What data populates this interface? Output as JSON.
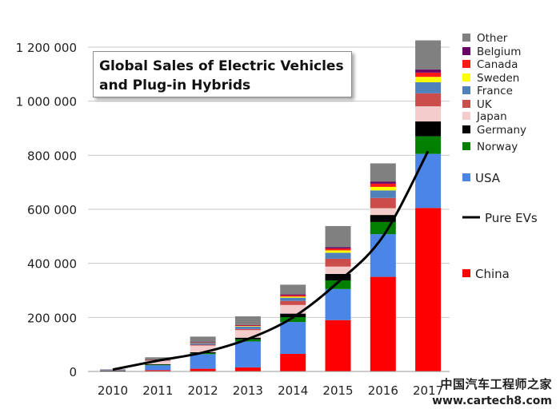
{
  "chart_data": {
    "type": "bar",
    "stacked": true,
    "title_lines": [
      "Global Sales of Electric Vehicles",
      "and Plug-in Hybrids"
    ],
    "categories": [
      "2010",
      "2011",
      "2012",
      "2013",
      "2014",
      "2015",
      "2016",
      "2017"
    ],
    "y_ticks": [
      0,
      200000,
      400000,
      600000,
      800000,
      1000000,
      1200000
    ],
    "y_tick_labels": [
      "0",
      "200 000",
      "400 000",
      "600 000",
      "800 000",
      "1 000 000",
      "1 200 000"
    ],
    "ylim": [
      0,
      1250000
    ],
    "grid": true,
    "legend_position": "right",
    "series": [
      {
        "name": "China",
        "color": "#ff0000",
        "values": [
          1000,
          5000,
          10000,
          15000,
          65000,
          190000,
          350000,
          605000
        ]
      },
      {
        "name": "USA",
        "color": "#4a86e8",
        "values": [
          1000,
          18000,
          54000,
          96000,
          118000,
          115000,
          158000,
          200000
        ]
      },
      {
        "name": "Norway",
        "color": "#007f00",
        "values": [
          500,
          2000,
          4000,
          8000,
          18000,
          32000,
          45000,
          65000
        ]
      },
      {
        "name": "Germany",
        "color": "#000000",
        "values": [
          500,
          2000,
          3000,
          6000,
          13000,
          24000,
          26000,
          55000
        ]
      },
      {
        "name": "Japan",
        "color": "#f4cccc",
        "values": [
          2000,
          12000,
          25000,
          28000,
          32000,
          27000,
          25000,
          56000
        ]
      },
      {
        "name": "UK",
        "color": "#cc4c4c",
        "values": [
          500,
          1500,
          3000,
          4000,
          15000,
          29000,
          38000,
          48000
        ]
      },
      {
        "name": "France",
        "color": "#4f81bd",
        "values": [
          500,
          2500,
          6000,
          9000,
          12000,
          22000,
          28000,
          41000
        ]
      },
      {
        "name": "Sweden",
        "color": "#ffff00",
        "values": [
          0,
          500,
          1000,
          2000,
          4000,
          9000,
          13000,
          20000
        ]
      },
      {
        "name": "Canada",
        "color": "#ff1a1a",
        "values": [
          0,
          500,
          1000,
          2000,
          5000,
          7000,
          12000,
          16000
        ]
      },
      {
        "name": "Belgium",
        "color": "#660066",
        "values": [
          0,
          500,
          1000,
          2000,
          3000,
          5000,
          7000,
          11000
        ]
      },
      {
        "name": "Other",
        "color": "#808080",
        "values": [
          2000,
          8000,
          21000,
          32000,
          36000,
          78000,
          68000,
          108000
        ]
      }
    ],
    "line_series": {
      "name": "Pure EVs",
      "color": "#000000",
      "values": [
        7000,
        40000,
        70000,
        120000,
        200000,
        330000,
        500000,
        815000
      ]
    }
  },
  "watermark": {
    "cn": "中国汽车工程师之家",
    "url": "www.cartech8.com"
  }
}
